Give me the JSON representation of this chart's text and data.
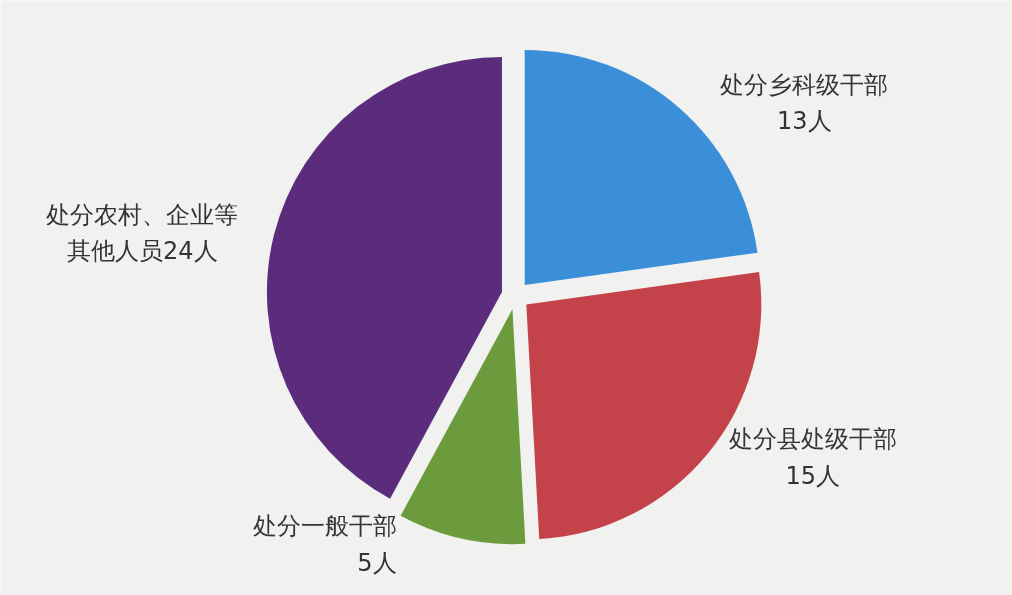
{
  "chart_data": {
    "type": "pie",
    "categories": [
      "处分乡科级干部",
      "处分县处级干部",
      "处分一般干部",
      "处分农村、企业等其他人员"
    ],
    "values": [
      13,
      15,
      5,
      24
    ],
    "value_labels": [
      "13人",
      "15人",
      "5人",
      "24人"
    ],
    "colors": [
      "#3b8fd8",
      "#c4434b",
      "#6b9b3c",
      "#5b2c7c"
    ]
  }
}
